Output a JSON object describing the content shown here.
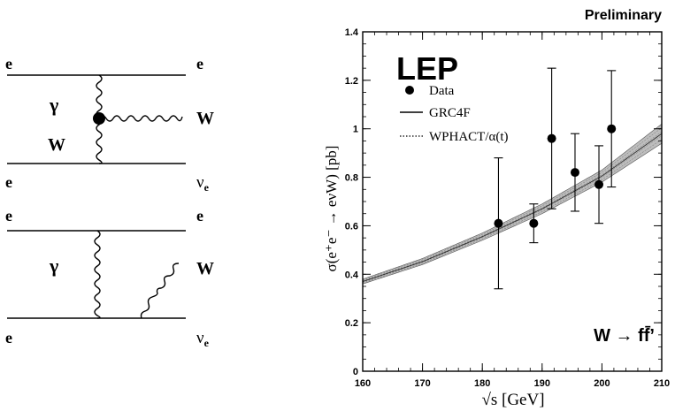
{
  "feynman": {
    "diagram1": {
      "top_left": "e",
      "top_right": "e",
      "boson_left": "γ",
      "boson_w": "W",
      "right_out": "W",
      "bottom_left": "e",
      "bottom_right_base": "ν",
      "bottom_right_sub": "e"
    },
    "diagram2": {
      "top_left": "e",
      "top_right": "e",
      "boson_left": "γ",
      "right_out": "W",
      "bottom_left": "e",
      "bottom_right_base": "ν",
      "bottom_right_sub": "e"
    }
  },
  "chart_data": {
    "type": "scatter",
    "badge": "Preliminary",
    "experiment_label": "LEP",
    "channel_label": "W → ff̄’",
    "xlabel": "√s [GeV]",
    "ylabel": "σ(e⁺e⁻ → eνW) [pb]",
    "xlim": [
      160,
      210
    ],
    "ylim": [
      0,
      1.4
    ],
    "xticks": [
      "160",
      "170",
      "180",
      "190",
      "200",
      "210"
    ],
    "yticks": [
      "0",
      "0.2",
      "0.4",
      "0.6",
      "0.8",
      "1",
      "1.2",
      "1.4"
    ],
    "grid": false,
    "legend_position": "top-left",
    "legend": [
      {
        "name": "Data",
        "marker": "dot"
      },
      {
        "name": "GRC4F",
        "marker": "solid-line"
      },
      {
        "name": "WPHACT/α(t)",
        "marker": "dotted-line"
      }
    ],
    "data_points": {
      "x": [
        182.7,
        188.6,
        191.6,
        195.5,
        199.5,
        201.6
      ],
      "y": [
        0.61,
        0.61,
        0.96,
        0.82,
        0.77,
        1.0
      ],
      "y_low": [
        0.34,
        0.53,
        0.67,
        0.66,
        0.61,
        0.76
      ],
      "y_high": [
        0.88,
        0.69,
        1.25,
        0.98,
        0.93,
        1.24
      ]
    },
    "prediction_band": {
      "x": [
        160,
        170,
        180,
        190,
        200,
        210
      ],
      "y_low": [
        0.36,
        0.44,
        0.54,
        0.65,
        0.78,
        0.94
      ],
      "y_high": [
        0.38,
        0.465,
        0.57,
        0.69,
        0.83,
        1.02
      ],
      "y_center": [
        0.37,
        0.452,
        0.555,
        0.67,
        0.805,
        0.98
      ]
    }
  }
}
